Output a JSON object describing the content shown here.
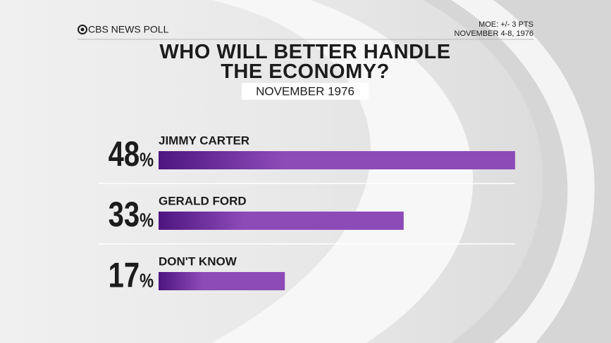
{
  "header": {
    "brand": "CBS NEWS POLL",
    "moe": "MOE: +/- 3 PTS",
    "dates": "NOVEMBER 4-8, 1976"
  },
  "chart_data": {
    "type": "bar",
    "orientation": "horizontal",
    "title": "WHO WILL BETTER HANDLE THE ECONOMY?",
    "subtitle": "NOVEMBER 1976",
    "categories": [
      "JIMMY CARTER",
      "GERALD FORD",
      "DON'T KNOW"
    ],
    "values": [
      48,
      33,
      17
    ],
    "value_labels": [
      "48%",
      "33%",
      "17%"
    ],
    "color": "#8d4bb8"
  }
}
